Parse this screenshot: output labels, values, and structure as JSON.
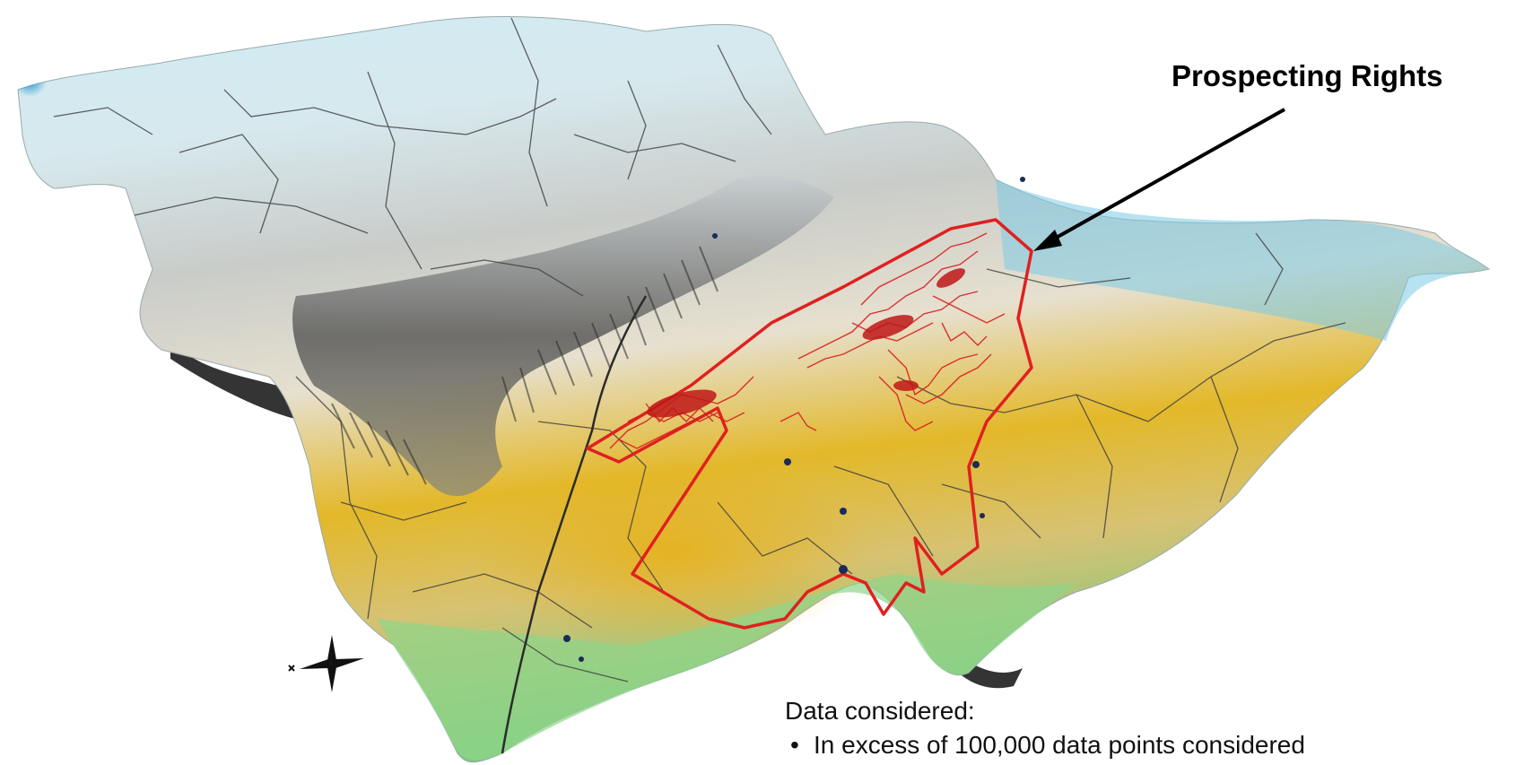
{
  "callout": {
    "label": "Prospecting Rights"
  },
  "notes": {
    "heading": "Data considered:",
    "bullets": [
      "In excess of 100,000 data points considered"
    ]
  },
  "legend_colors": {
    "high_elevation": "#3aa9d8",
    "mid_elevation": "#e8e3d6",
    "slope_shadow": "#3a3a3a",
    "low_elevation": "#e0b41f",
    "lowest_elevation": "#7cc87e",
    "prospecting_boundary": "#e02020"
  },
  "icons": {
    "north_arrow": "compass-arrow-icon"
  }
}
